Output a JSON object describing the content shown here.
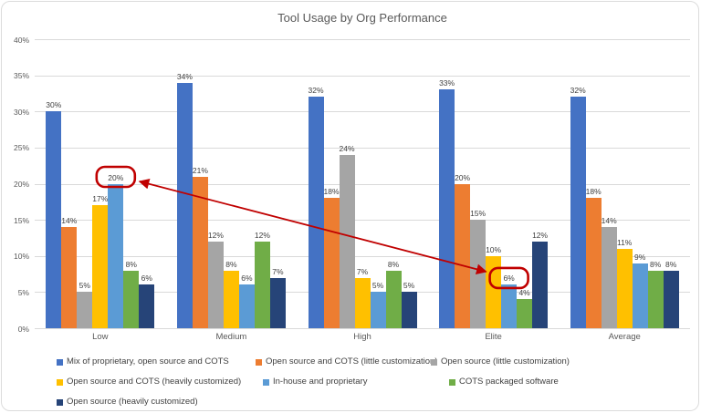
{
  "chart_data": {
    "type": "bar",
    "title": "Tool Usage by Org Performance",
    "categories": [
      "Low",
      "Medium",
      "High",
      "Elite",
      "Average"
    ],
    "series": [
      {
        "name": "Mix of proprietary, open source and COTS",
        "color": "#4472C4",
        "values": [
          30,
          34,
          32,
          33,
          32
        ]
      },
      {
        "name": "Open source and COTS (little customization)",
        "color": "#ED7D31",
        "values": [
          14,
          21,
          18,
          20,
          18
        ]
      },
      {
        "name": "Open source (little customization)",
        "color": "#A5A5A5",
        "values": [
          5,
          12,
          24,
          15,
          14
        ]
      },
      {
        "name": "Open source and COTS (heavily customized)",
        "color": "#FFC000",
        "values": [
          17,
          8,
          7,
          10,
          11
        ]
      },
      {
        "name": "In-house and proprietary",
        "color": "#5B9BD5",
        "values": [
          20,
          6,
          5,
          6,
          9
        ]
      },
      {
        "name": "COTS packaged software",
        "color": "#70AD47",
        "values": [
          8,
          12,
          8,
          4,
          8
        ]
      },
      {
        "name": "Open source (heavily customized)",
        "color": "#264478",
        "values": [
          6,
          7,
          5,
          12,
          8
        ]
      }
    ],
    "value_label_suffix": "%",
    "ylabel": "",
    "xlabel": "",
    "ylim": [
      0,
      40
    ],
    "yticks": [
      "0%",
      "5%",
      "10%",
      "15%",
      "20%",
      "25%",
      "30%",
      "35%",
      "40%"
    ],
    "grid": true,
    "legend_position": "bottom",
    "annotations": {
      "color": "#C00000",
      "highlights": [
        {
          "category_index": 0,
          "series_index": 4,
          "label": "20%"
        },
        {
          "category_index": 3,
          "series_index": 4,
          "label": "6%"
        }
      ],
      "arrow": {
        "from_highlight": 0,
        "to_highlight": 1,
        "double_headed": true
      }
    }
  }
}
